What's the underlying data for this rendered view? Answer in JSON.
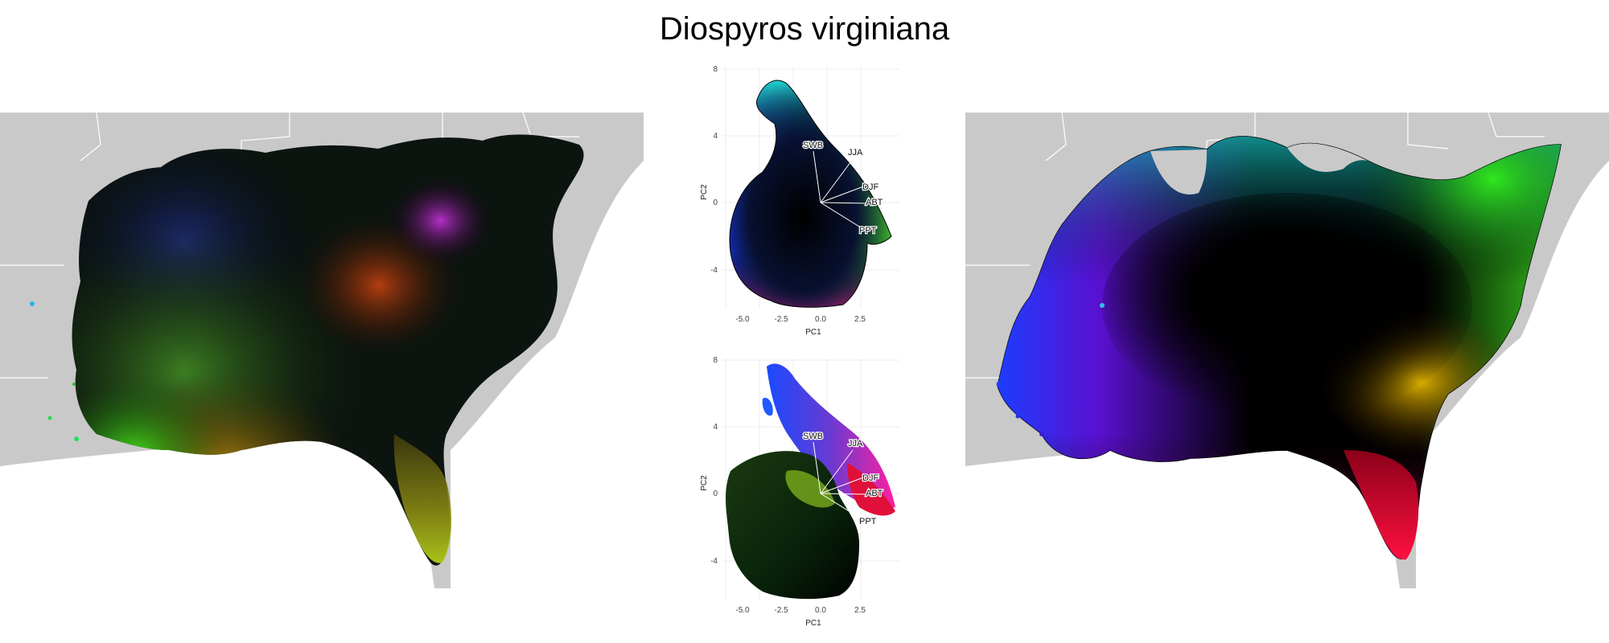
{
  "title": "Diospyros virginiana",
  "pca_top": {
    "x_ticks": [
      "-5.0",
      "-2.5",
      "0.0",
      "2.5"
    ],
    "y_ticks": [
      "8",
      "4",
      "0",
      "-4"
    ],
    "xlabel": "PC1",
    "ylabel": "PC2",
    "vectors": [
      "SWB",
      "JJA",
      "DJF",
      "ABT",
      "PPT"
    ]
  },
  "pca_bottom": {
    "x_ticks": [
      "-5.0",
      "-2.5",
      "0.0",
      "2.5"
    ],
    "y_ticks": [
      "8",
      "4",
      "0",
      "-4"
    ],
    "xlabel": "PC1",
    "ylabel": "PC2",
    "vectors": [
      "SWB",
      "JJA",
      "DJF",
      "ABT",
      "PPT"
    ]
  }
}
